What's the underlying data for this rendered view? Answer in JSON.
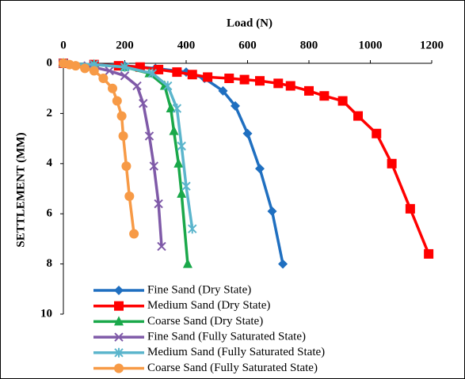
{
  "chart_data": {
    "type": "line",
    "x_label": "Load (N)",
    "y_label": "SETTLEMENT (MM)",
    "xlim": [
      0,
      1200
    ],
    "xticks": [
      0,
      200,
      400,
      600,
      800,
      1000,
      1200
    ],
    "ylim": [
      0,
      10
    ],
    "yticks": [
      0,
      2,
      4,
      6,
      8,
      10
    ],
    "y_inverted": true,
    "x_axis_position": "top",
    "grid": false,
    "legend": "bottom-left",
    "series": [
      {
        "name": "Fine Sand (Dry State)",
        "color": "#1f6fc0",
        "marker": "diamond",
        "x": [
          0,
          100,
          200,
          300,
          400,
          460,
          520,
          560,
          600,
          640,
          680,
          715
        ],
        "values": [
          0,
          0.05,
          0.1,
          0.2,
          0.35,
          0.6,
          1.1,
          1.7,
          2.8,
          4.2,
          5.9,
          8.0
        ]
      },
      {
        "name": "Medium Sand (Dry State)",
        "color": "#ff0000",
        "marker": "square",
        "x": [
          0,
          100,
          180,
          250,
          310,
          370,
          420,
          470,
          540,
          590,
          640,
          700,
          740,
          800,
          850,
          910,
          960,
          1020,
          1070,
          1130,
          1190
        ],
        "values": [
          0,
          0.05,
          0.1,
          0.15,
          0.25,
          0.35,
          0.45,
          0.55,
          0.6,
          0.65,
          0.7,
          0.8,
          0.9,
          1.1,
          1.3,
          1.5,
          2.1,
          2.8,
          4.0,
          5.8,
          7.6
        ]
      },
      {
        "name": "Coarse Sand (Dry State)",
        "color": "#1aa84a",
        "marker": "triangle",
        "x": [
          0,
          100,
          200,
          280,
          330,
          350,
          360,
          375,
          385,
          405
        ],
        "values": [
          0,
          0.05,
          0.15,
          0.4,
          0.9,
          1.8,
          2.7,
          4.0,
          5.2,
          8.0
        ]
      },
      {
        "name": "Fine Sand (Fully Saturated State)",
        "color": "#7f5aa8",
        "marker": "x",
        "x": [
          0,
          80,
          150,
          200,
          240,
          260,
          280,
          295,
          310,
          320
        ],
        "values": [
          0,
          0.1,
          0.3,
          0.5,
          0.9,
          1.6,
          2.9,
          4.1,
          5.6,
          7.3
        ]
      },
      {
        "name": "Medium Sand (Fully Saturated State)",
        "color": "#5bb5cc",
        "marker": "star",
        "x": [
          0,
          100,
          200,
          290,
          340,
          370,
          385,
          400,
          420
        ],
        "values": [
          0,
          0.05,
          0.15,
          0.4,
          0.9,
          1.8,
          3.3,
          4.9,
          6.6
        ]
      },
      {
        "name": "Coarse Sand (Fully Saturated State)",
        "color": "#f79a46",
        "marker": "circle",
        "x": [
          0,
          20,
          40,
          70,
          100,
          130,
          160,
          175,
          190,
          195,
          205,
          215,
          230
        ],
        "values": [
          0,
          0.05,
          0.1,
          0.2,
          0.3,
          0.6,
          1.0,
          1.5,
          2.1,
          2.9,
          4.1,
          5.3,
          6.8
        ]
      }
    ]
  }
}
